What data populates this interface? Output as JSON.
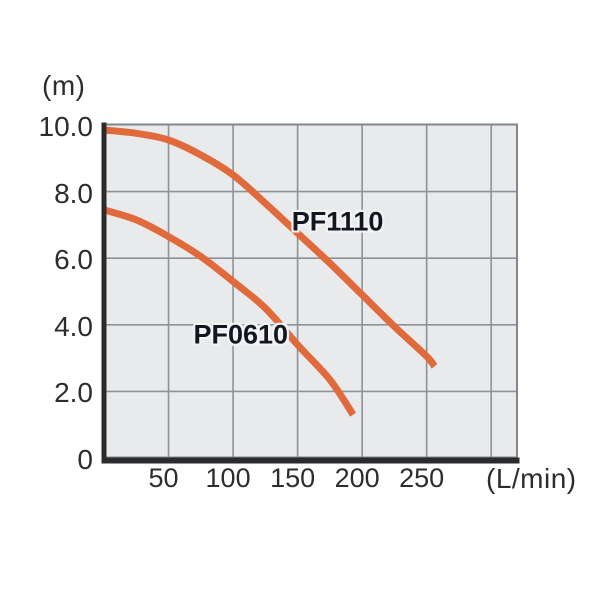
{
  "chart_data": {
    "type": "line",
    "title": "",
    "xlabel": "(L/min)",
    "ylabel": "(m)",
    "xlim": [
      0,
      320
    ],
    "ylim": [
      0,
      10
    ],
    "grid": true,
    "x_gridline_step": 50,
    "y_gridline_step": 2,
    "x_ticks": [
      {
        "label": "50",
        "value": 50
      },
      {
        "label": "100",
        "value": 100
      },
      {
        "label": "150",
        "value": 150
      },
      {
        "label": "200",
        "value": 200
      },
      {
        "label": "250",
        "value": 250
      }
    ],
    "y_ticks": [
      {
        "label": "10.0",
        "value": 10
      },
      {
        "label": "8.0",
        "value": 8
      },
      {
        "label": "6.0",
        "value": 6
      },
      {
        "label": "4.0",
        "value": 4
      },
      {
        "label": "2.0",
        "value": 2
      },
      {
        "label": "0",
        "value": 0
      }
    ],
    "series": [
      {
        "name": "PF1110",
        "x": [
          0,
          25,
          50,
          75,
          100,
          125,
          150,
          175,
          200,
          225,
          250,
          256
        ],
        "y": [
          9.85,
          9.75,
          9.55,
          9.1,
          8.5,
          7.65,
          6.75,
          5.85,
          4.9,
          3.95,
          3.05,
          2.75
        ],
        "label_anchor": {
          "x": 181,
          "y": 7.1
        }
      },
      {
        "name": "PF0610",
        "x": [
          0,
          25,
          50,
          75,
          100,
          125,
          150,
          175,
          193
        ],
        "y": [
          7.45,
          7.15,
          6.65,
          6.05,
          5.3,
          4.5,
          3.4,
          2.35,
          1.3
        ],
        "label_anchor": {
          "x": 106,
          "y": 3.7
        }
      }
    ],
    "legend_position": "inline-labels",
    "colors": {
      "curve": "#e16a3c",
      "plot_background": "#e8eaec",
      "gridline": "#8d9298",
      "frame": "#80878d",
      "axis": "#2b2b2e",
      "tick_text": "#2d2d30",
      "series_label_text": "#15151f"
    }
  }
}
